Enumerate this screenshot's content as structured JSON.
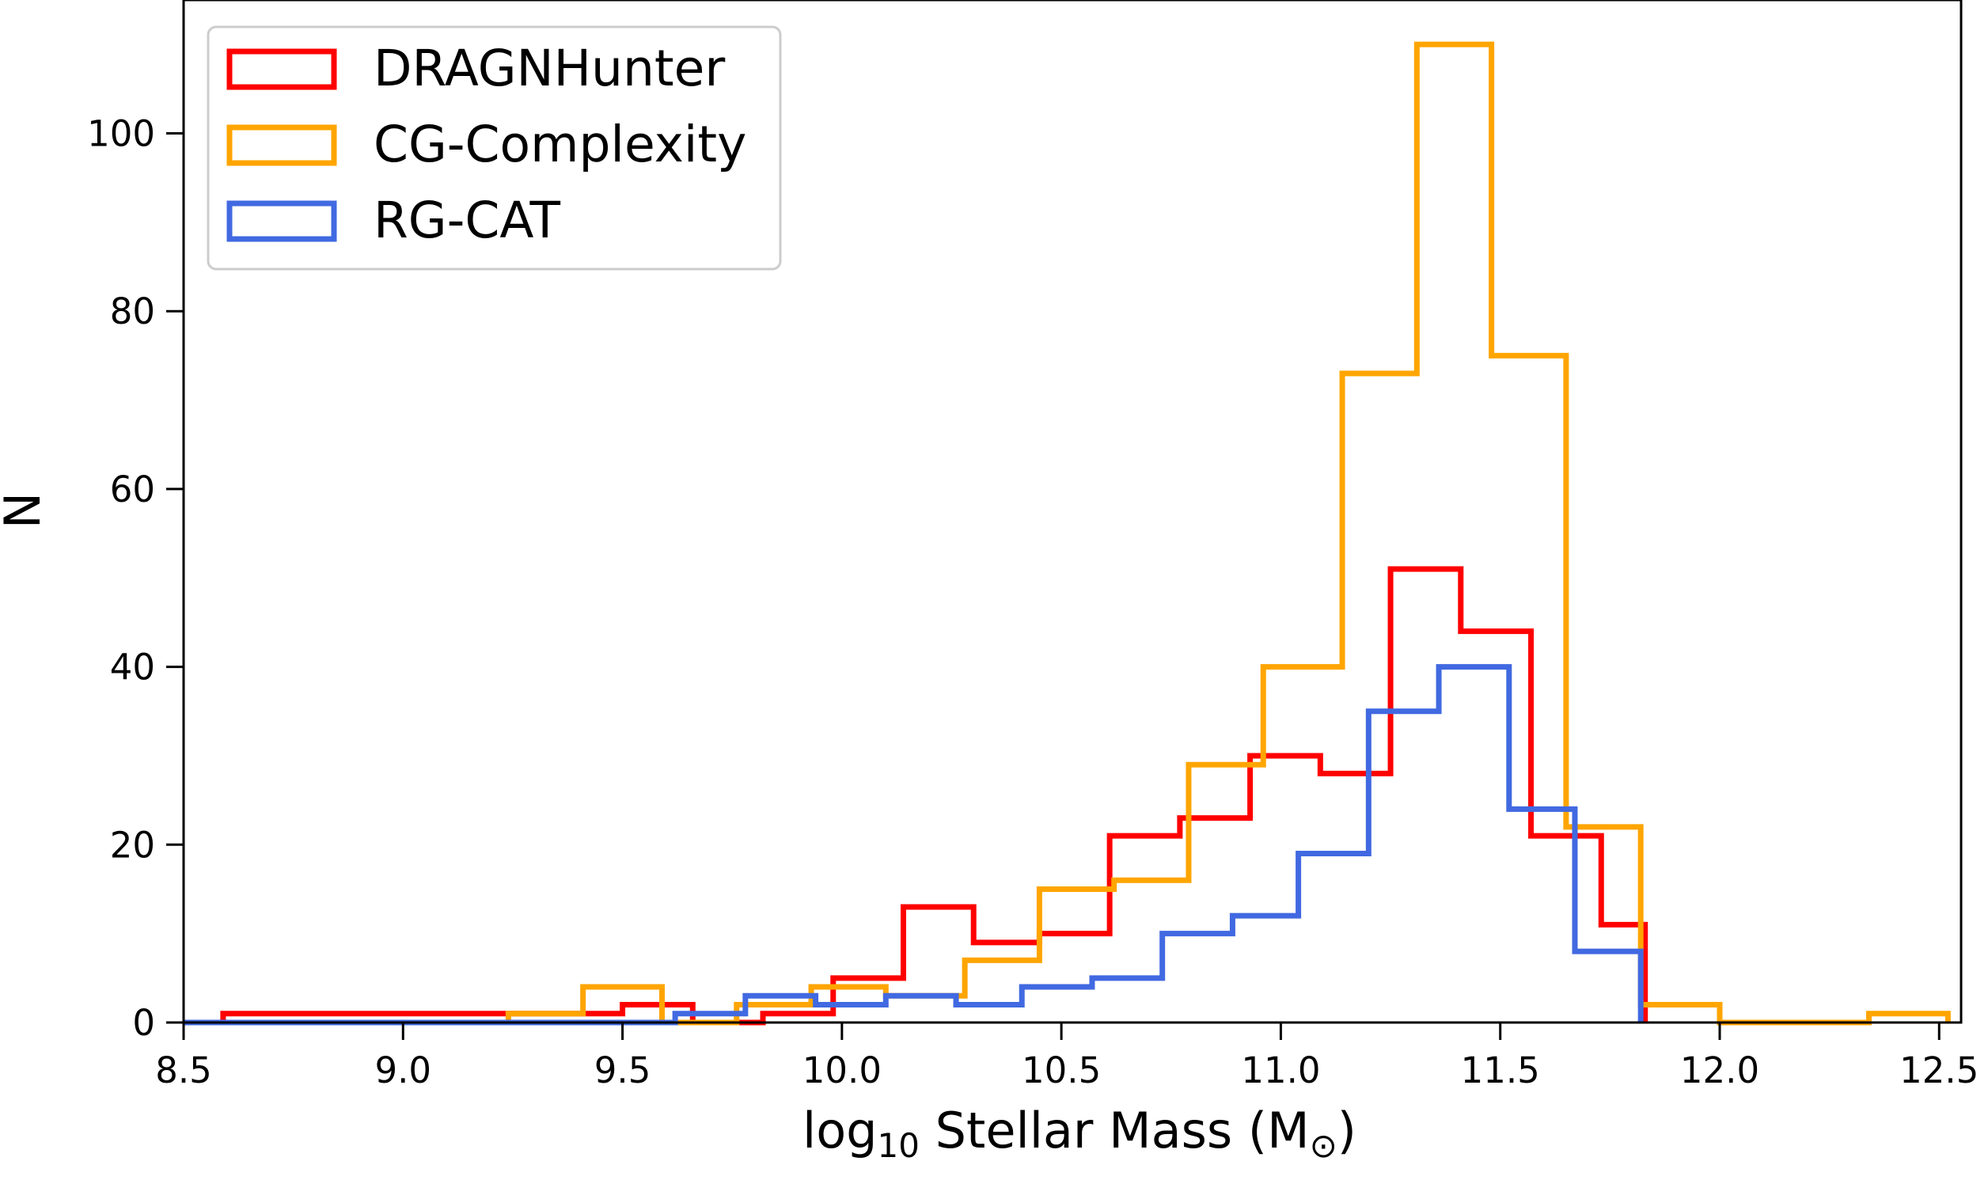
{
  "chart_data": {
    "type": "histogram",
    "xlabel_main": "log",
    "xlabel_sub": "10",
    "xlabel_rest": " Stellar Mass (M",
    "xlabel_symbol": "⊙",
    "xlabel_close": ")",
    "ylabel": "N",
    "xlim": [
      8.5,
      12.55
    ],
    "ylim": [
      0,
      115
    ],
    "xticks": [
      8.5,
      9.0,
      9.5,
      10.0,
      10.5,
      11.0,
      11.5,
      12.0,
      12.5
    ],
    "xtick_labels": [
      "8.5",
      "9.0",
      "9.5",
      "10.0",
      "10.5",
      "11.0",
      "11.5",
      "12.0",
      "12.5"
    ],
    "yticks": [
      0,
      20,
      40,
      60,
      80,
      100
    ],
    "ytick_labels": [
      "0",
      "20",
      "40",
      "60",
      "80",
      "100"
    ],
    "legend_position": "upper-left",
    "series": [
      {
        "name": "DRAGNHunter",
        "color": "#ff0000",
        "edges": [
          8.59,
          8.75,
          8.9,
          9.05,
          9.2,
          9.35,
          9.5,
          9.66,
          9.82,
          9.98,
          10.14,
          10.3,
          10.45,
          10.61,
          10.77,
          10.93,
          11.09,
          11.25,
          11.41,
          11.57,
          11.73,
          11.83
        ],
        "counts": [
          1,
          1,
          1,
          1,
          1,
          1,
          2,
          0,
          1,
          5,
          13,
          9,
          10,
          21,
          23,
          30,
          28,
          51,
          44,
          21,
          11
        ]
      },
      {
        "name": "CG-Complexity",
        "color": "#ffa500",
        "edges": [
          9.24,
          9.41,
          9.59,
          9.76,
          9.93,
          10.1,
          10.28,
          10.45,
          10.62,
          10.79,
          10.96,
          11.14,
          11.31,
          11.48,
          11.65,
          11.82,
          12.0,
          12.17,
          12.34,
          12.52
        ],
        "counts": [
          1,
          4,
          0,
          2,
          4,
          3,
          7,
          15,
          16,
          29,
          40,
          73,
          110,
          75,
          22,
          2,
          0,
          0,
          1
        ]
      },
      {
        "name": "RG-CAT",
        "color": "#4169e1",
        "edges": [
          8.5,
          9.62,
          9.78,
          9.94,
          10.1,
          10.26,
          10.41,
          10.57,
          10.73,
          10.89,
          11.04,
          11.2,
          11.36,
          11.52,
          11.67,
          11.82
        ],
        "counts": [
          0,
          1,
          3,
          2,
          3,
          2,
          4,
          5,
          10,
          12,
          19,
          35,
          40,
          24,
          8
        ]
      }
    ]
  }
}
